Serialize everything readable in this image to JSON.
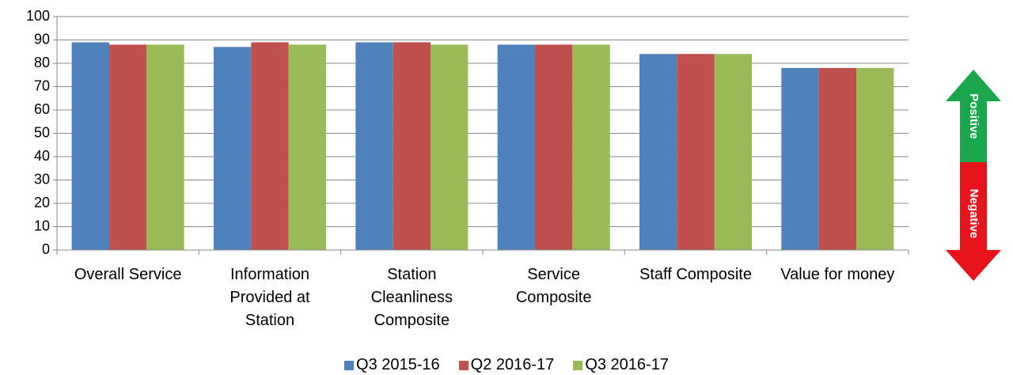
{
  "chart_data": {
    "type": "bar",
    "categories": [
      "Overall Service",
      "Information Provided at Station",
      "Station Cleanliness Composite",
      "Service Composite",
      "Staff Composite",
      "Value for money"
    ],
    "series": [
      {
        "name": "Q3 2015-16",
        "color": "#4f81bd",
        "values": [
          89,
          87,
          89,
          88,
          84,
          78
        ]
      },
      {
        "name": "Q2 2016-17",
        "color": "#c0504d",
        "values": [
          88,
          89,
          89,
          88,
          84,
          78
        ]
      },
      {
        "name": "Q3 2016-17",
        "color": "#9bbb59",
        "values": [
          88,
          88,
          88,
          88,
          84,
          78
        ]
      }
    ],
    "ylim": [
      0,
      100
    ],
    "yticks": [
      0,
      10,
      20,
      30,
      40,
      50,
      60,
      70,
      80,
      90,
      100
    ],
    "grid": true,
    "annotations": {
      "positive": "Positive",
      "negative": "Negative"
    }
  }
}
